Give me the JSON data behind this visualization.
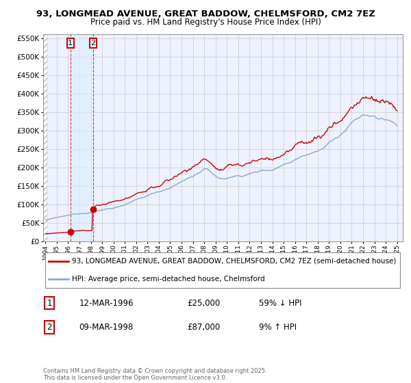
{
  "title1": "93, LONGMEAD AVENUE, GREAT BADDOW, CHELMSFORD, CM2 7EZ",
  "title2": "Price paid vs. HM Land Registry's House Price Index (HPI)",
  "legend_line1": "93, LONGMEAD AVENUE, GREAT BADDOW, CHELMSFORD, CM2 7EZ (semi-detached house)",
  "legend_line2": "HPI: Average price, semi-detached house, Chelmsford",
  "sale1_date": "12-MAR-1996",
  "sale1_price": "£25,000",
  "sale1_hpi": "59% ↓ HPI",
  "sale2_date": "09-MAR-1998",
  "sale2_price": "£87,000",
  "sale2_hpi": "9% ↑ HPI",
  "footnote": "Contains HM Land Registry data © Crown copyright and database right 2025.\nThis data is licensed under the Open Government Licence v3.0.",
  "hpi_color": "#88aacc",
  "price_color": "#cc0000",
  "plot_bg_color": "#eef2ff",
  "grid_color": "#cccccc",
  "sale1_year": 1996.2,
  "sale2_year": 1998.2,
  "sale1_price_val": 25000,
  "sale2_price_val": 87000,
  "ylim_max": 560000,
  "ylim_min": 0,
  "xmin": 1994,
  "xmax": 2025
}
